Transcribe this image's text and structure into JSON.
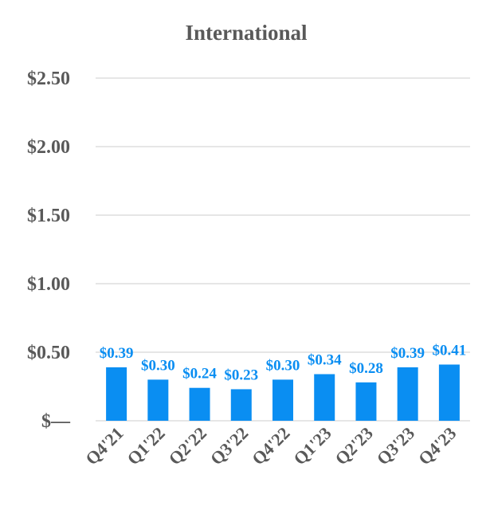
{
  "chart_data": {
    "type": "bar",
    "title": "International",
    "categories": [
      "Q4'21",
      "Q1'22",
      "Q2'22",
      "Q3'22",
      "Q4'22",
      "Q1'23",
      "Q2'23",
      "Q3'23",
      "Q4'23"
    ],
    "values": [
      0.39,
      0.3,
      0.24,
      0.23,
      0.3,
      0.34,
      0.28,
      0.39,
      0.41
    ],
    "data_labels": [
      "$0.39",
      "$0.30",
      "$0.24",
      "$0.23",
      "$0.30",
      "$0.34",
      "$0.28",
      "$0.39",
      "$0.41"
    ],
    "y_ticks": [
      {
        "value": 0,
        "label": "$—"
      },
      {
        "value": 0.5,
        "label": "$0.50"
      },
      {
        "value": 1.0,
        "label": "$1.00"
      },
      {
        "value": 1.5,
        "label": "$1.50"
      },
      {
        "value": 2.0,
        "label": "$2.00"
      },
      {
        "value": 2.5,
        "label": "$2.50"
      }
    ],
    "ylim": [
      0,
      2.5
    ],
    "xlabel": "",
    "ylabel": "",
    "grid": true,
    "legend": "none",
    "colors": {
      "bar": "#0a8ef2",
      "label": "#0a8ef2",
      "text": "#595959",
      "grid": "#e6e6e6"
    }
  }
}
